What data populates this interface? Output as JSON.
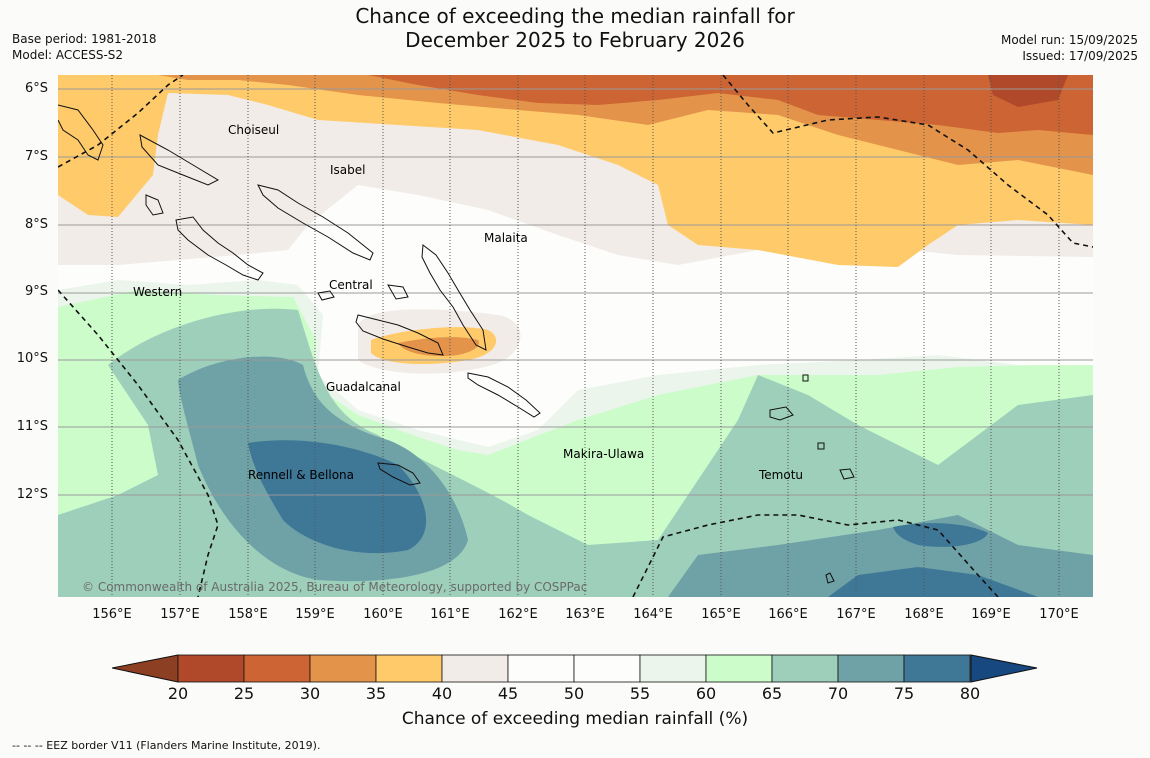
{
  "title_line1": "Chance of exceeding the median rainfall for",
  "title_line2": "December 2025 to February 2026",
  "base_period": "Base period: 1981-2018",
  "model": "Model: ACCESS-S2",
  "model_run": "Model run: 15/09/2025",
  "issued": "Issued: 17/09/2025",
  "latitude_labels": [
    "6°S",
    "7°S",
    "8°S",
    "9°S",
    "10°S",
    "11°S",
    "12°S"
  ],
  "longitude_labels": [
    "156°E",
    "157°E",
    "158°E",
    "159°E",
    "160°E",
    "161°E",
    "162°E",
    "163°E",
    "164°E",
    "165°E",
    "166°E",
    "167°E",
    "168°E",
    "169°E",
    "170°E"
  ],
  "regions": {
    "choiseul": "Choiseul",
    "isabel": "Isabel",
    "malaita": "Malaita",
    "central": "Central",
    "western": "Western",
    "guadalcanal": "Guadalcanal",
    "makira": "Makira-Ulawa",
    "temotu": "Temotu",
    "rennell": "Rennell & Bellona"
  },
  "copyright": "© Commonwealth of Australia 2025, Bureau of Meteorology, supported by COSPPac",
  "colorbar": {
    "label": "Chance of exceeding median rainfall (%)",
    "ticks": [
      "20",
      "25",
      "30",
      "35",
      "40",
      "45",
      "50",
      "55",
      "60",
      "65",
      "70",
      "75",
      "80"
    ],
    "colors": [
      "#b0492a",
      "#cc6433",
      "#e3944a",
      "#ffcb6a",
      "#f2ece8",
      "#fdfdfc",
      "#fdfdfc",
      "#ebf5ec",
      "#ccfcca",
      "#9dcfbb",
      "#6fa2a6",
      "#3f7797",
      "#17487f"
    ]
  },
  "eez_note": "--  --  -- EEZ border V11 (Flanders Marine Institute, 2019)."
}
